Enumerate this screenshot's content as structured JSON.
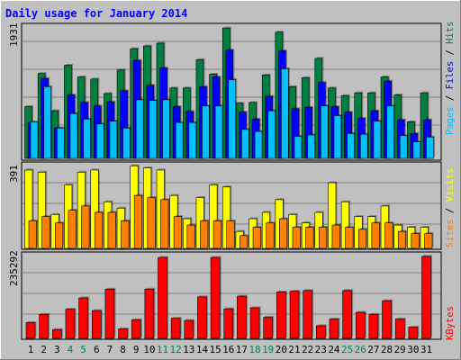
{
  "title": "Daily usage for January 2014",
  "panels": {
    "top": {
      "scale_label": "1931",
      "side_label_parts": [
        {
          "text": "Pages",
          "color": "#00C0FF"
        },
        {
          "text": " / ",
          "color": "#000000"
        },
        {
          "text": "Files",
          "color": "#0000FF"
        },
        {
          "text": " / ",
          "color": "#000000"
        },
        {
          "text": "Hits",
          "color": "#008040"
        }
      ]
    },
    "middle": {
      "scale_label": "391",
      "side_label_parts": [
        {
          "text": "Sites",
          "color": "#FF8000"
        },
        {
          "text": " / ",
          "color": "#000000"
        },
        {
          "text": "Visits",
          "color": "#FFFF00"
        }
      ]
    },
    "bottom": {
      "scale_label": "235292",
      "side_label_parts": [
        {
          "text": "KBytes",
          "color": "#FF0000"
        }
      ]
    }
  },
  "colors": {
    "background": "#C0C0C0",
    "frame": "#ffffff",
    "title": "#0000FF",
    "hits": "#008040",
    "files": "#0000FF",
    "pages": "#00C0FF",
    "visits": "#FFFF00",
    "sites": "#FF8000",
    "kbytes": "#FF0000",
    "weekend_label": "#00805C",
    "weekday_label": "#000000"
  },
  "chart_data": [
    {
      "type": "bar",
      "title": "Daily usage for January 2014",
      "ylabel": "Pages / Files / Hits",
      "categories": [
        "1",
        "2",
        "3",
        "4",
        "5",
        "6",
        "7",
        "8",
        "9",
        "10",
        "11",
        "12",
        "13",
        "14",
        "15",
        "16",
        "17",
        "18",
        "19",
        "20",
        "21",
        "22",
        "23",
        "24",
        "25",
        "26",
        "27",
        "28",
        "29",
        "30",
        "31"
      ],
      "weekend_days": [
        "4",
        "5",
        "11",
        "12",
        "18",
        "19",
        "25",
        "26"
      ],
      "ylim": [
        0,
        1931
      ],
      "series": [
        {
          "name": "Hits",
          "values": [
            750,
            1230,
            690,
            1350,
            1180,
            1150,
            940,
            1280,
            1590,
            1630,
            1670,
            1020,
            1020,
            1430,
            1220,
            1890,
            800,
            810,
            1210,
            1830,
            1040,
            1170,
            1450,
            1020,
            910,
            950,
            950,
            1180,
            920,
            530,
            950
          ]
        },
        {
          "name": "Files",
          "values": [
            520,
            1160,
            440,
            920,
            810,
            760,
            820,
            980,
            1420,
            1060,
            1310,
            750,
            680,
            1040,
            1180,
            1570,
            670,
            570,
            900,
            1560,
            720,
            740,
            1100,
            750,
            670,
            580,
            690,
            1120,
            560,
            360,
            560
          ]
        },
        {
          "name": "Pages",
          "values": [
            530,
            1040,
            440,
            650,
            570,
            500,
            540,
            440,
            850,
            840,
            850,
            520,
            520,
            760,
            760,
            1140,
            420,
            390,
            690,
            1300,
            320,
            340,
            760,
            620,
            360,
            350,
            540,
            760,
            330,
            240,
            310
          ]
        }
      ]
    },
    {
      "type": "bar",
      "ylabel": "Sites / Visits",
      "categories": [
        "1",
        "2",
        "3",
        "4",
        "5",
        "6",
        "7",
        "8",
        "9",
        "10",
        "11",
        "12",
        "13",
        "14",
        "15",
        "16",
        "17",
        "18",
        "19",
        "20",
        "21",
        "22",
        "23",
        "24",
        "25",
        "26",
        "27",
        "28",
        "29",
        "30",
        "31"
      ],
      "ylim": [
        0,
        391
      ],
      "series": [
        {
          "name": "Visits",
          "values": [
            370,
            360,
            160,
            300,
            360,
            370,
            220,
            190,
            390,
            380,
            370,
            250,
            140,
            240,
            300,
            290,
            80,
            140,
            170,
            230,
            160,
            120,
            170,
            310,
            220,
            150,
            150,
            200,
            110,
            100,
            100
          ]
        },
        {
          "name": "Sites",
          "values": [
            130,
            150,
            120,
            180,
            200,
            170,
            170,
            130,
            250,
            240,
            230,
            150,
            110,
            130,
            130,
            130,
            60,
            100,
            120,
            140,
            100,
            100,
            100,
            110,
            100,
            90,
            120,
            120,
            80,
            70,
            70
          ]
        }
      ]
    },
    {
      "type": "bar",
      "ylabel": "KBytes",
      "categories": [
        "1",
        "2",
        "3",
        "4",
        "5",
        "6",
        "7",
        "8",
        "9",
        "10",
        "11",
        "12",
        "13",
        "14",
        "15",
        "16",
        "17",
        "18",
        "19",
        "20",
        "21",
        "22",
        "23",
        "24",
        "25",
        "26",
        "27",
        "28",
        "29",
        "30",
        "31"
      ],
      "ylim": [
        0,
        235292
      ],
      "series": [
        {
          "name": "KBytes",
          "values": [
            45000,
            68000,
            25000,
            83000,
            115000,
            79000,
            140000,
            27000,
            53000,
            140000,
            230000,
            57000,
            51000,
            118000,
            230000,
            84000,
            120000,
            87000,
            60000,
            132000,
            134000,
            136000,
            36000,
            55000,
            136000,
            74000,
            68000,
            107000,
            55000,
            32000,
            233000
          ]
        }
      ]
    }
  ]
}
